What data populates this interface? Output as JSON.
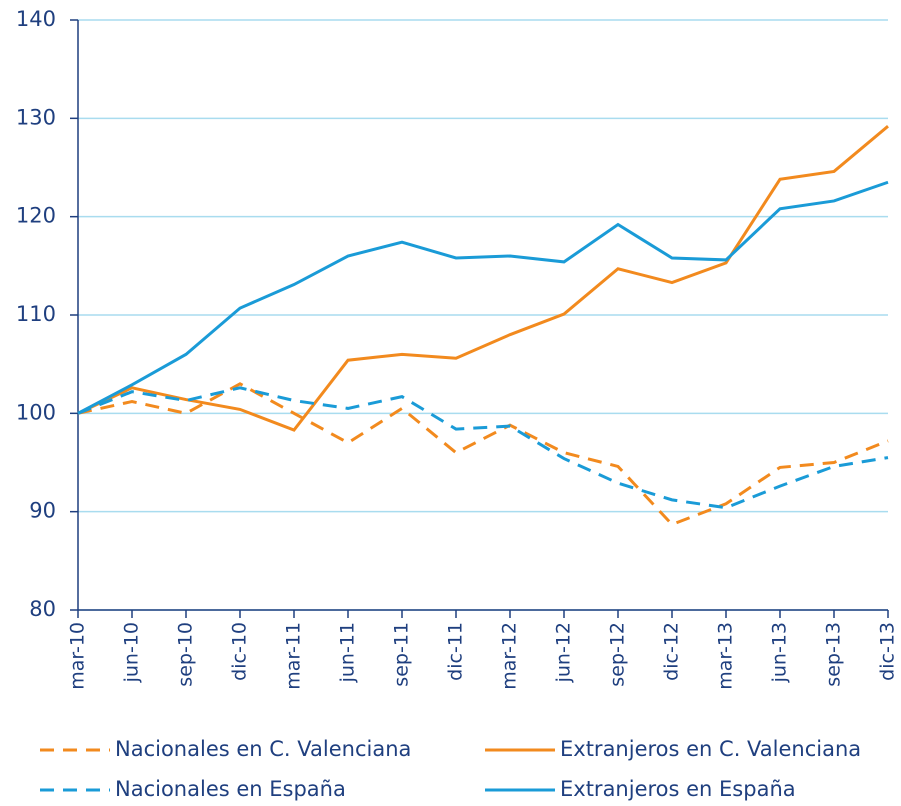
{
  "chart_data": {
    "type": "line",
    "categories": [
      "mar-10",
      "jun-10",
      "sep-10",
      "dic-10",
      "mar-11",
      "jun-11",
      "sep-11",
      "dic-11",
      "mar-12",
      "jun-12",
      "sep-12",
      "dic-12",
      "mar-13",
      "jun-13",
      "sep-13",
      "dic-13"
    ],
    "series": [
      {
        "name": "Nacionales en C. Valenciana",
        "color": "#f28a1e",
        "style": "dashed",
        "values": [
          100,
          101.2,
          100,
          103,
          100,
          97,
          100.5,
          96,
          98.8,
          96,
          94.6,
          88.7,
          90.8,
          94.5,
          95,
          97.2
        ]
      },
      {
        "name": "Extranjeros en C. Valenciana",
        "color": "#f28a1e",
        "style": "solid",
        "values": [
          100,
          102.6,
          101.4,
          100.4,
          98.3,
          105.4,
          106,
          105.6,
          108,
          110.1,
          114.7,
          113.3,
          115.3,
          123.8,
          124.6,
          129.2
        ]
      },
      {
        "name": "Nacionales en España",
        "color": "#1a9bd7",
        "style": "dashed",
        "values": [
          100,
          102.2,
          101.3,
          102.6,
          101.3,
          100.5,
          101.7,
          98.4,
          98.7,
          95.4,
          92.9,
          91.2,
          90.4,
          92.6,
          94.6,
          95.5
        ]
      },
      {
        "name": "Extranjeros en España",
        "color": "#1a9bd7",
        "style": "solid",
        "values": [
          100,
          102.9,
          106,
          110.7,
          113.1,
          116,
          117.4,
          115.8,
          116,
          115.4,
          119.2,
          115.8,
          115.6,
          120.8,
          121.6,
          123.5
        ]
      }
    ],
    "ylim": [
      80,
      140
    ],
    "yticks": [
      80,
      90,
      100,
      110,
      120,
      130,
      140
    ],
    "grid": true,
    "legend": "bottom"
  }
}
